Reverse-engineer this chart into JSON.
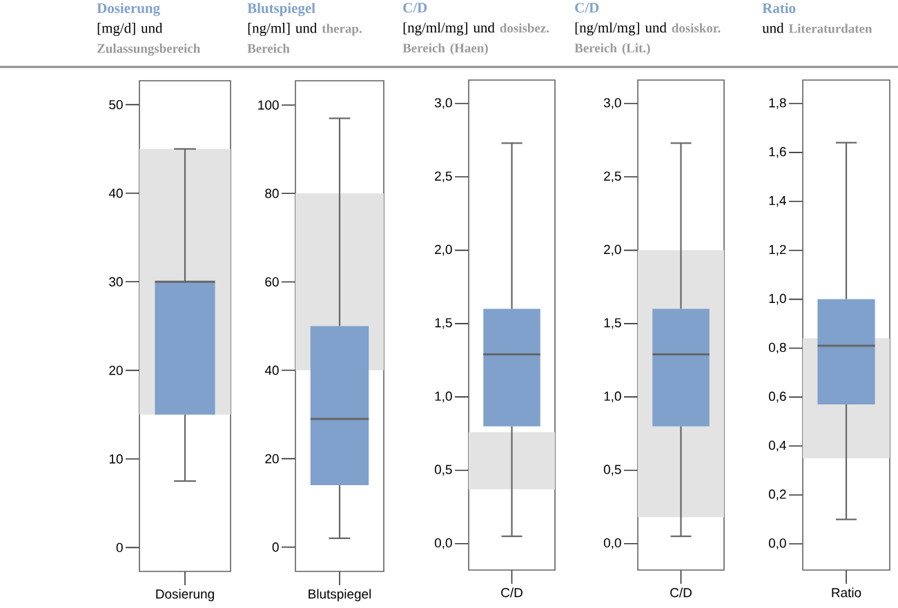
{
  "chart_data": [
    {
      "type": "box",
      "title": "Dosierung",
      "subtitle": "[mg/d] und",
      "categories": [
        "Dosierung"
      ],
      "series": [
        {
          "color": "#7fa1cb",
          "boxes": [
            {
              "low": 7.5,
              "q1": 15,
              "median": 30,
              "q3": 30,
              "high": 45
            }
          ]
        }
      ],
      "bands": [
        {
          "axis": "y",
          "from": 15,
          "to": 45,
          "color": "#e3e3e3"
        }
      ],
      "annotations": [
        "Zulassungsbereich"
      ],
      "ylim": [
        -2.7,
        52.7
      ],
      "yticks": [
        0,
        10,
        20,
        30,
        40,
        50
      ]
    },
    {
      "type": "box",
      "title": "Blutspiegel",
      "subtitle": "[ng/ml] und",
      "categories": [
        "Blutspiegel"
      ],
      "series": [
        {
          "color": "#7fa1cb",
          "boxes": [
            {
              "low": 2,
              "q1": 14,
              "median": 29,
              "q3": 50,
              "high": 97
            }
          ]
        }
      ],
      "bands": [
        {
          "axis": "y",
          "from": 40,
          "to": 80,
          "color": "#e3e3e3"
        }
      ],
      "annotations": [
        "therap. Bereich"
      ],
      "ylim": [
        -5.5,
        105.5
      ],
      "yticks": [
        0,
        20,
        40,
        60,
        80,
        100
      ]
    },
    {
      "type": "box",
      "title": "C/D",
      "subtitle": "[ng/ml/mg] und",
      "categories": [
        "C/D"
      ],
      "series": [
        {
          "color": "#7fa1cb",
          "boxes": [
            {
              "low": 0.05,
              "q1": 0.8,
              "median": 1.29,
              "q3": 1.6,
              "high": 2.73
            }
          ]
        }
      ],
      "bands": [
        {
          "axis": "y",
          "from": 0.37,
          "to": 0.76,
          "color": "#e3e3e3"
        }
      ],
      "annotations": [
        "dosisbez. Bereich (Haen)"
      ],
      "ylim": [
        -0.18,
        3.16
      ],
      "yticks": [
        {
          "value": 0,
          "label": "0,0"
        },
        {
          "value": 0.5,
          "label": "0,5"
        },
        {
          "value": 1,
          "label": "1,0"
        },
        {
          "value": 1.5,
          "label": "1,5"
        },
        {
          "value": 2,
          "label": "2,0"
        },
        {
          "value": 2.5,
          "label": "2,5"
        },
        {
          "value": 3,
          "label": "3,0"
        }
      ]
    },
    {
      "type": "box",
      "title": "C/D",
      "subtitle": "[ng/ml/mg] und",
      "categories": [
        "C/D"
      ],
      "series": [
        {
          "color": "#7fa1cb",
          "boxes": [
            {
              "low": 0.05,
              "q1": 0.8,
              "median": 1.29,
              "q3": 1.6,
              "high": 2.73
            }
          ]
        }
      ],
      "bands": [
        {
          "axis": "y",
          "from": 0.18,
          "to": 2.0,
          "color": "#e3e3e3"
        }
      ],
      "annotations": [
        "dosiskor. Bereich (Lit.)"
      ],
      "ylim": [
        -0.18,
        3.16
      ],
      "yticks": [
        {
          "value": 0,
          "label": "0,0"
        },
        {
          "value": 0.5,
          "label": "0,5"
        },
        {
          "value": 1,
          "label": "1,0"
        },
        {
          "value": 1.5,
          "label": "1,5"
        },
        {
          "value": 2,
          "label": "2,0"
        },
        {
          "value": 2.5,
          "label": "2,5"
        },
        {
          "value": 3,
          "label": "3,0"
        }
      ]
    },
    {
      "type": "box",
      "title": "Ratio",
      "subtitle": "und",
      "categories": [
        "Ratio"
      ],
      "series": [
        {
          "color": "#7fa1cb",
          "boxes": [
            {
              "low": 0.1,
              "q1": 0.57,
              "median": 0.81,
              "q3": 1.0,
              "high": 1.64
            }
          ]
        }
      ],
      "bands": [
        {
          "axis": "y",
          "from": 0.35,
          "to": 0.84,
          "color": "#e3e3e3"
        }
      ],
      "annotations": [
        "Literaturdaten"
      ],
      "ylim": [
        -0.107,
        1.896
      ],
      "yticks": [
        {
          "value": 0,
          "label": "0,0"
        },
        {
          "value": 0.2,
          "label": "0,2"
        },
        {
          "value": 0.4,
          "label": "0,4"
        },
        {
          "value": 0.6,
          "label": "0,6"
        },
        {
          "value": 0.8,
          "label": "0,8"
        },
        {
          "value": 1,
          "label": "1,0"
        },
        {
          "value": 1.2,
          "label": "1,2"
        },
        {
          "value": 1.4,
          "label": "1,4"
        },
        {
          "value": 1.6,
          "label": "1,6"
        },
        {
          "value": 1.8,
          "label": "1,8"
        }
      ]
    }
  ]
}
